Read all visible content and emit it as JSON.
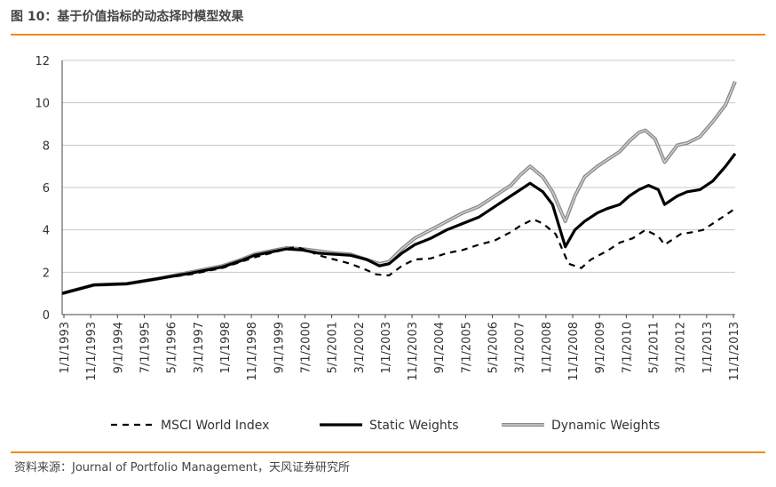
{
  "header": {
    "title": "图 10：基于价值指标的动态择时模型效果"
  },
  "source": {
    "text": "资料来源：Journal of Portfolio Management，天风证券研究所"
  },
  "colors": {
    "accent": "#f08a1c",
    "msci": "#000000",
    "static": "#000000",
    "dynamic": "#8c8c8c",
    "grid": "#c8c8c8"
  },
  "chart_data": {
    "type": "line",
    "title": "",
    "xlabel": "",
    "ylabel": "",
    "ylim": [
      0,
      12
    ],
    "yticks": [
      0,
      2,
      4,
      6,
      8,
      10,
      12
    ],
    "xlim": [
      1993.0,
      2014.0
    ],
    "xtick_labels": [
      "1/1/1993",
      "11/1/1993",
      "9/1/1994",
      "7/1/1995",
      "5/1/1996",
      "3/1/1997",
      "1/1/1998",
      "11/1/1998",
      "9/1/1999",
      "7/1/2000",
      "5/1/2001",
      "3/1/2002",
      "1/1/2003",
      "11/1/2003",
      "9/1/2004",
      "7/1/2005",
      "5/1/2006",
      "3/1/2007",
      "1/1/2008",
      "11/1/2008",
      "9/1/2009",
      "7/1/2010",
      "5/1/2011",
      "3/1/2012",
      "1/1/2013",
      "11/1/2013"
    ],
    "legend_position": "bottom",
    "series": [
      {
        "name": "MSCI World Index",
        "style": "dashed",
        "x": [
          1993.0,
          1994.0,
          1995.0,
          1996.0,
          1997.0,
          1998.0,
          1998.6,
          1999.0,
          1999.5,
          2000.0,
          2000.3,
          2000.7,
          2001.0,
          2001.5,
          2002.0,
          2002.5,
          2002.8,
          2003.2,
          2003.6,
          2004.0,
          2004.5,
          2005.0,
          2005.5,
          2006.0,
          2006.5,
          2007.0,
          2007.3,
          2007.7,
          2008.0,
          2008.4,
          2008.8,
          2009.2,
          2009.5,
          2010.0,
          2010.4,
          2010.8,
          2011.2,
          2011.6,
          2011.8,
          2012.3,
          2012.7,
          2013.0,
          2013.5,
          2013.9,
          2014.0
        ],
        "y": [
          1.0,
          1.4,
          1.45,
          1.7,
          1.9,
          2.2,
          2.5,
          2.7,
          2.9,
          3.1,
          3.2,
          3.0,
          2.8,
          2.6,
          2.4,
          2.1,
          1.9,
          1.85,
          2.3,
          2.6,
          2.65,
          2.9,
          3.05,
          3.3,
          3.5,
          3.9,
          4.2,
          4.5,
          4.3,
          3.8,
          2.4,
          2.2,
          2.6,
          3.0,
          3.4,
          3.6,
          4.0,
          3.7,
          3.3,
          3.8,
          3.9,
          4.0,
          4.5,
          4.9,
          5.1
        ]
      },
      {
        "name": "Static Weights",
        "style": "solid",
        "x": [
          1993.0,
          1994.0,
          1995.0,
          1996.0,
          1997.0,
          1998.0,
          1998.6,
          1999.0,
          1999.5,
          2000.0,
          2000.5,
          2001.0,
          2001.5,
          2002.0,
          2002.5,
          2002.9,
          2003.2,
          2003.6,
          2004.0,
          2004.5,
          2005.0,
          2005.5,
          2006.0,
          2006.5,
          2007.0,
          2007.3,
          2007.6,
          2008.0,
          2008.3,
          2008.7,
          2009.0,
          2009.3,
          2009.7,
          2010.0,
          2010.4,
          2010.7,
          2011.0,
          2011.3,
          2011.6,
          2011.8,
          2012.2,
          2012.5,
          2012.9,
          2013.3,
          2013.7,
          2014.0
        ],
        "y": [
          1.0,
          1.4,
          1.45,
          1.7,
          1.95,
          2.25,
          2.55,
          2.8,
          2.95,
          3.1,
          3.05,
          2.9,
          2.85,
          2.8,
          2.6,
          2.3,
          2.4,
          2.9,
          3.3,
          3.6,
          4.0,
          4.3,
          4.6,
          5.1,
          5.6,
          5.9,
          6.2,
          5.8,
          5.2,
          3.2,
          4.0,
          4.4,
          4.8,
          5.0,
          5.2,
          5.6,
          5.9,
          6.1,
          5.9,
          5.2,
          5.6,
          5.8,
          5.9,
          6.3,
          7.0,
          7.6
        ]
      },
      {
        "name": "Dynamic Weights",
        "style": "double",
        "x": [
          1993.0,
          1994.0,
          1995.0,
          1996.0,
          1997.0,
          1998.0,
          1998.6,
          1999.0,
          1999.5,
          2000.0,
          2000.5,
          2001.0,
          2001.5,
          2002.0,
          2002.5,
          2002.9,
          2003.2,
          2003.6,
          2004.0,
          2004.5,
          2005.0,
          2005.5,
          2006.0,
          2006.5,
          2007.0,
          2007.3,
          2007.6,
          2008.0,
          2008.3,
          2008.7,
          2009.0,
          2009.3,
          2009.7,
          2010.0,
          2010.4,
          2010.7,
          2011.0,
          2011.2,
          2011.5,
          2011.8,
          2012.2,
          2012.5,
          2012.9,
          2013.3,
          2013.7,
          2014.0
        ],
        "y": [
          1.0,
          1.4,
          1.45,
          1.7,
          2.0,
          2.3,
          2.6,
          2.85,
          3.0,
          3.15,
          3.1,
          3.0,
          2.9,
          2.85,
          2.6,
          2.4,
          2.5,
          3.1,
          3.6,
          4.0,
          4.4,
          4.8,
          5.1,
          5.6,
          6.1,
          6.6,
          7.0,
          6.5,
          5.8,
          4.4,
          5.6,
          6.5,
          7.0,
          7.3,
          7.7,
          8.2,
          8.6,
          8.7,
          8.3,
          7.2,
          8.0,
          8.1,
          8.4,
          9.1,
          9.9,
          11.0
        ]
      }
    ]
  }
}
